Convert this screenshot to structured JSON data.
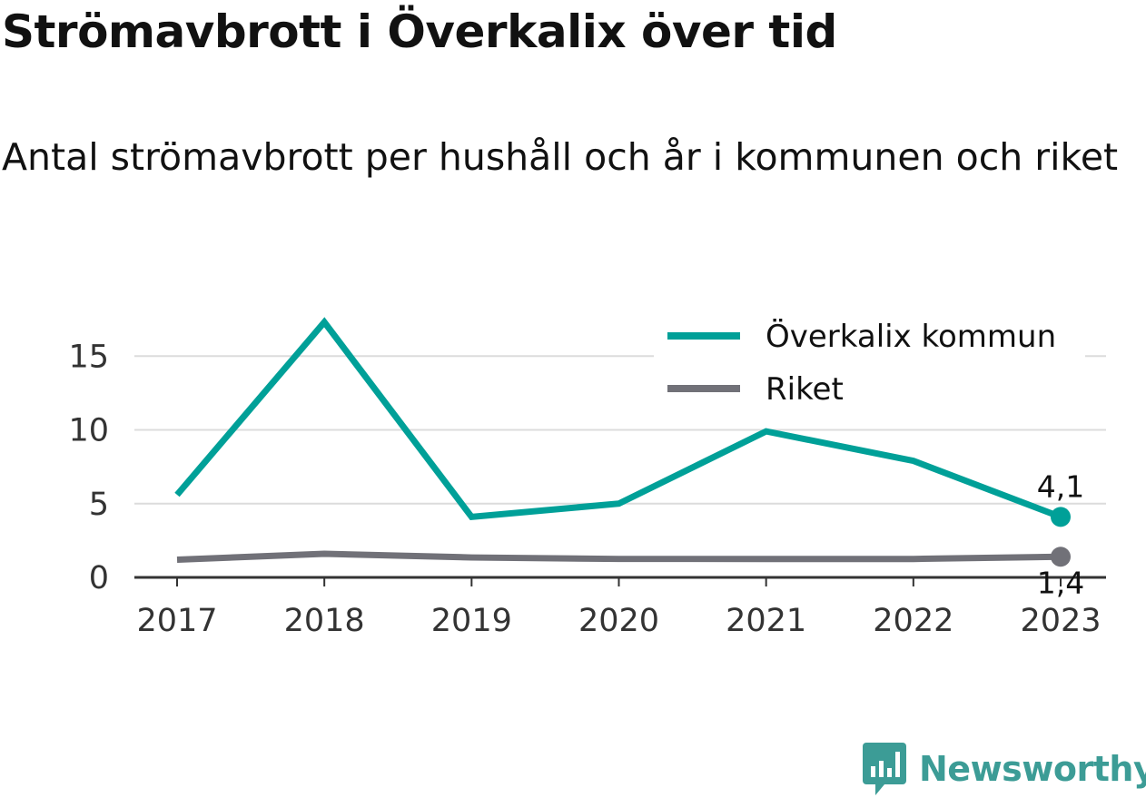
{
  "title": "Strömavbrott i Överkalix över tid",
  "subtitle": "Antal strömavbrott per hushåll och år i kommunen och riket",
  "brand": "Newsworthy",
  "colors": {
    "overkalix": "#00a098",
    "riket": "#717178",
    "grid": "#dcdcdc",
    "axis": "#333333",
    "brand": "#3c9c96"
  },
  "chart_data": {
    "type": "line",
    "x": [
      "2017",
      "2018",
      "2019",
      "2020",
      "2021",
      "2022",
      "2023"
    ],
    "ylim": [
      0,
      18
    ],
    "yticks": [
      0,
      5,
      10,
      15
    ],
    "grid": true,
    "legend_position": "top-right",
    "series": [
      {
        "name": "Överkalix kommun",
        "values": [
          5.6,
          17.3,
          4.1,
          5.0,
          9.9,
          7.9,
          4.1
        ],
        "end_label": "4,1"
      },
      {
        "name": "Riket",
        "values": [
          1.2,
          1.6,
          1.35,
          1.25,
          1.25,
          1.25,
          1.4
        ],
        "end_label": "1,4"
      }
    ]
  }
}
